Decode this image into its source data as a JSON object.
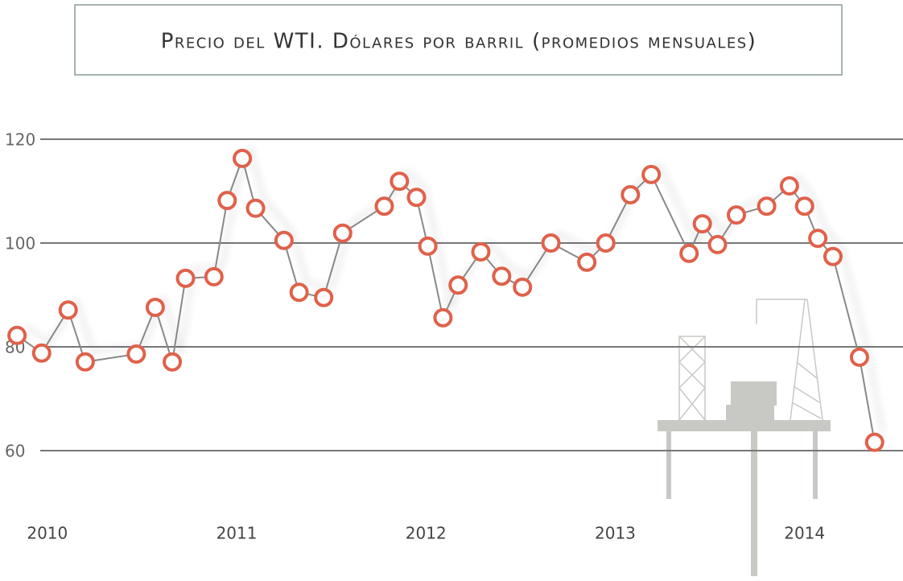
{
  "chart_data": {
    "type": "line",
    "title": "Precio del WTI. Dólares por barril (promedios mensuales)",
    "x": [
      2009.84,
      2009.97,
      2010.11,
      2010.2,
      2010.47,
      2010.57,
      2010.66,
      2010.73,
      2010.88,
      2010.95,
      2011.03,
      2011.1,
      2011.25,
      2011.33,
      2011.46,
      2011.56,
      2011.78,
      2011.86,
      2011.95,
      2012.01,
      2012.09,
      2012.17,
      2012.29,
      2012.4,
      2012.51,
      2012.66,
      2012.85,
      2012.95,
      2013.08,
      2013.19,
      2013.39,
      2013.46,
      2013.54,
      2013.64,
      2013.8,
      2013.92,
      2014.0,
      2014.07,
      2014.15,
      2014.29,
      2014.37
    ],
    "values": [
      82.2,
      78.8,
      87.1,
      77.1,
      78.6,
      87.6,
      77.1,
      93.2,
      93.5,
      108.2,
      116.3,
      106.7,
      100.5,
      90.5,
      89.5,
      101.9,
      107.1,
      111.9,
      108.8,
      99.4,
      85.6,
      91.9,
      98.3,
      93.6,
      91.5,
      100,
      96.3,
      100,
      109.3,
      113.2,
      98,
      103.7,
      99.7,
      105.4,
      107.1,
      111,
      107.1,
      100.9,
      97.4,
      78,
      61.6
    ],
    "line_color": "#888888",
    "marker_color": "#e0614a",
    "xlim": [
      2009.75,
      2014.52
    ],
    "xticks": [
      2010,
      2011,
      2012,
      2013,
      2014
    ],
    "ylim": [
      60,
      120
    ],
    "yticks": [
      60,
      80,
      100,
      120
    ],
    "grid": true
  }
}
